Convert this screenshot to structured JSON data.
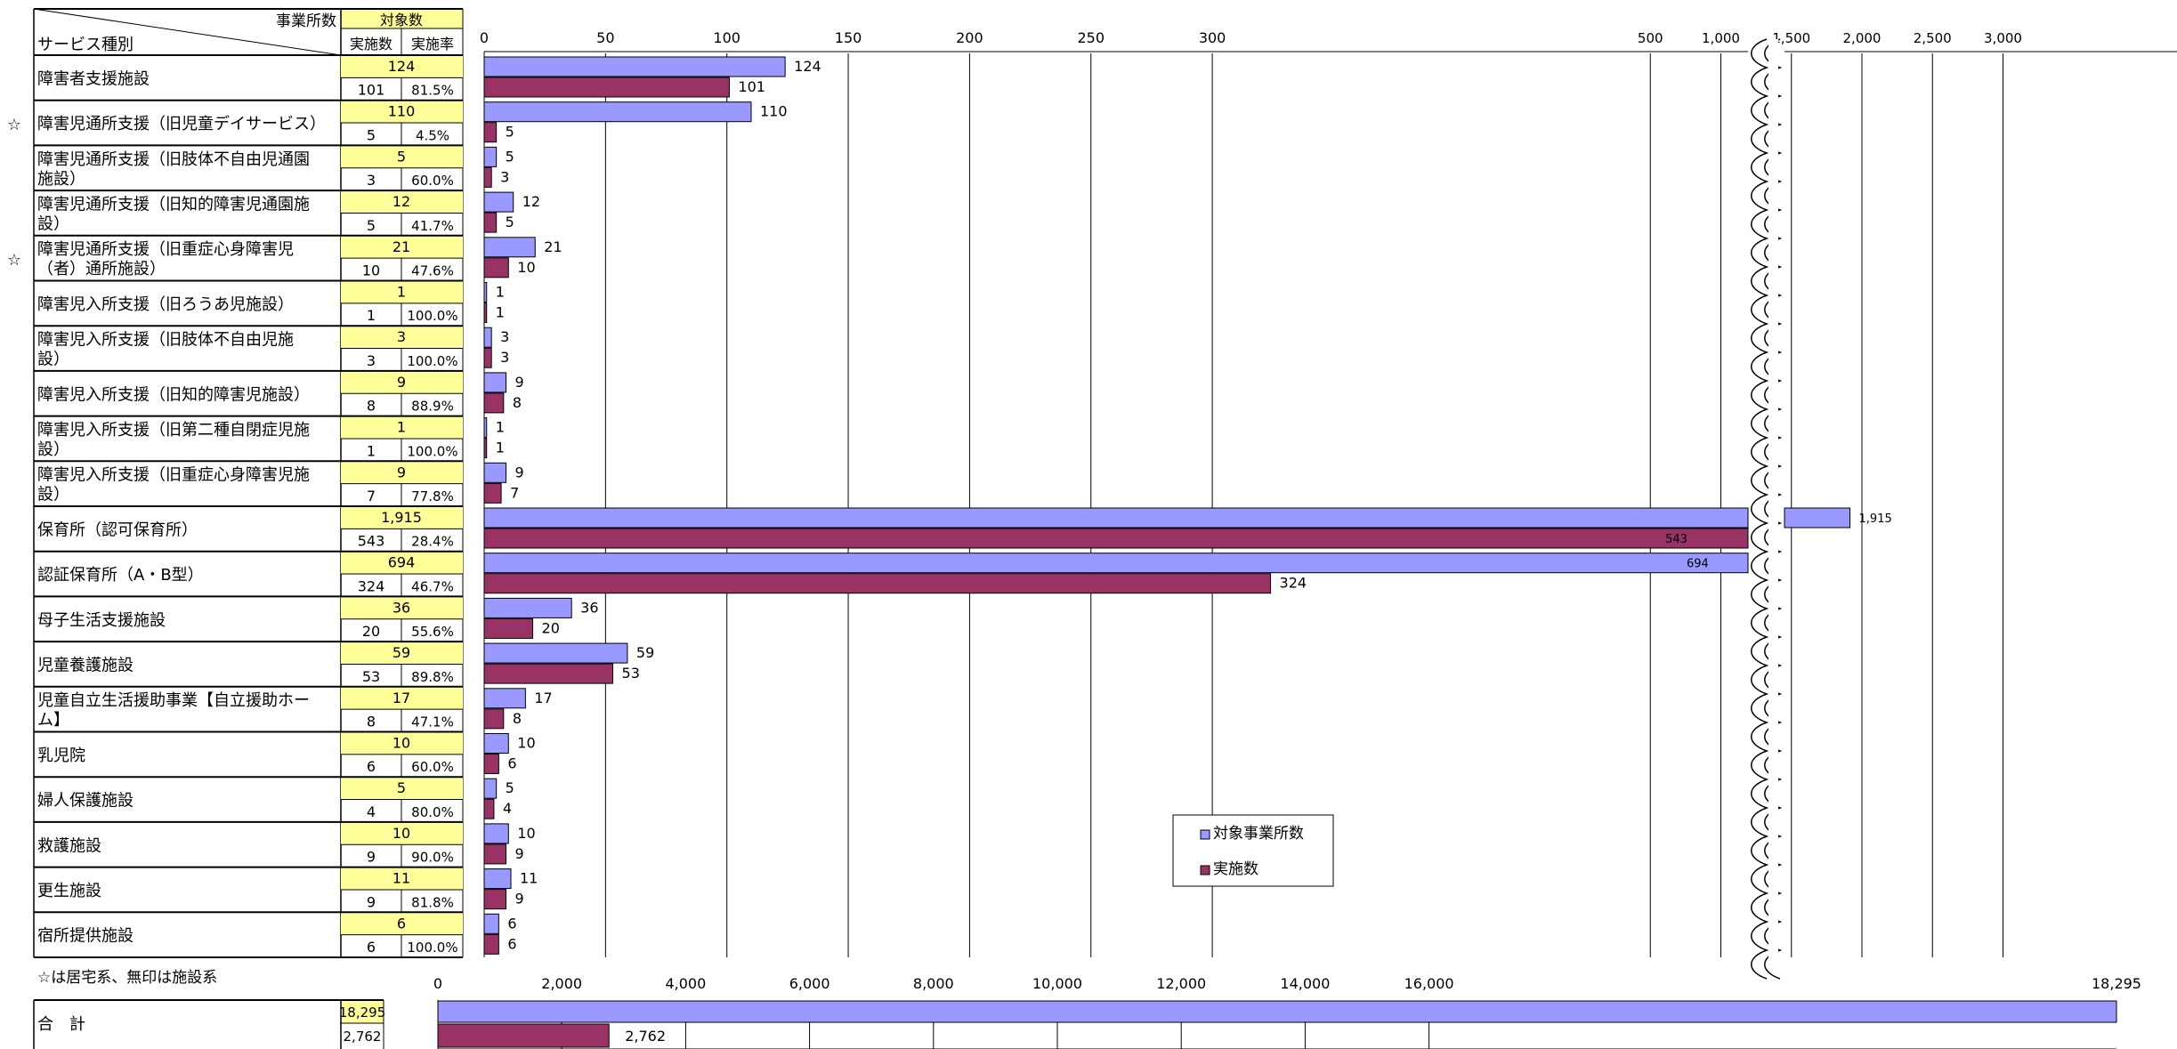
{
  "table": {
    "header_office": "事業所数",
    "header_target": "対象数",
    "header_service": "サービス種別",
    "header_done": "実施数",
    "header_rate": "実施率"
  },
  "rows": [
    {
      "star": "",
      "label": [
        "障害者支援施設"
      ],
      "target": 124,
      "target_text": "124",
      "done": 101,
      "done_text": "101",
      "rate": "81.5%"
    },
    {
      "star": "☆",
      "label": [
        "障害児通所支援（旧児童デイサービス）"
      ],
      "target": 110,
      "target_text": "110",
      "done": 5,
      "done_text": "5",
      "rate": "4.5%"
    },
    {
      "star": "",
      "label": [
        "障害児通所支援（旧肢体不自由児通園",
        "施設）"
      ],
      "target": 5,
      "target_text": "5",
      "done": 3,
      "done_text": "3",
      "rate": "60.0%"
    },
    {
      "star": "",
      "label": [
        "障害児通所支援（旧知的障害児通園施",
        "設）"
      ],
      "target": 12,
      "target_text": "12",
      "done": 5,
      "done_text": "5",
      "rate": "41.7%"
    },
    {
      "star": "☆",
      "label": [
        "障害児通所支援（旧重症心身障害児",
        "（者）通所施設）"
      ],
      "target": 21,
      "target_text": "21",
      "done": 10,
      "done_text": "10",
      "rate": "47.6%"
    },
    {
      "star": "",
      "label": [
        "障害児入所支援（旧ろうあ児施設）"
      ],
      "target": 1,
      "target_text": "1",
      "done": 1,
      "done_text": "1",
      "rate": "100.0%"
    },
    {
      "star": "",
      "label": [
        "障害児入所支援（旧肢体不自由児施",
        "設）"
      ],
      "target": 3,
      "target_text": "3",
      "done": 3,
      "done_text": "3",
      "rate": "100.0%"
    },
    {
      "star": "",
      "label": [
        "障害児入所支援（旧知的障害児施設）"
      ],
      "target": 9,
      "target_text": "9",
      "done": 8,
      "done_text": "8",
      "rate": "88.9%"
    },
    {
      "star": "",
      "label": [
        "障害児入所支援（旧第二種自閉症児施",
        "設）"
      ],
      "target": 1,
      "target_text": "1",
      "done": 1,
      "done_text": "1",
      "rate": "100.0%"
    },
    {
      "star": "",
      "label": [
        "障害児入所支援（旧重症心身障害児施",
        "設）"
      ],
      "target": 9,
      "target_text": "9",
      "done": 7,
      "done_text": "7",
      "rate": "77.8%"
    },
    {
      "star": "",
      "label": [
        "保育所（認可保育所）"
      ],
      "target": 1915,
      "target_text": "1,915",
      "done": 543,
      "done_text": "543",
      "rate": "28.4%"
    },
    {
      "star": "",
      "label": [
        "認証保育所（A・B型）"
      ],
      "target": 694,
      "target_text": "694",
      "done": 324,
      "done_text": "324",
      "rate": "46.7%"
    },
    {
      "star": "",
      "label": [
        "母子生活支援施設"
      ],
      "target": 36,
      "target_text": "36",
      "done": 20,
      "done_text": "20",
      "rate": "55.6%"
    },
    {
      "star": "",
      "label": [
        "児童養護施設"
      ],
      "target": 59,
      "target_text": "59",
      "done": 53,
      "done_text": "53",
      "rate": "89.8%"
    },
    {
      "star": "",
      "label": [
        "児童自立生活援助事業【自立援助ホー",
        "ム】"
      ],
      "target": 17,
      "target_text": "17",
      "done": 8,
      "done_text": "8",
      "rate": "47.1%"
    },
    {
      "star": "",
      "label": [
        "乳児院"
      ],
      "target": 10,
      "target_text": "10",
      "done": 6,
      "done_text": "6",
      "rate": "60.0%"
    },
    {
      "star": "",
      "label": [
        "婦人保護施設"
      ],
      "target": 5,
      "target_text": "5",
      "done": 4,
      "done_text": "4",
      "rate": "80.0%"
    },
    {
      "star": "",
      "label": [
        "救護施設"
      ],
      "target": 10,
      "target_text": "10",
      "done": 9,
      "done_text": "9",
      "rate": "90.0%"
    },
    {
      "star": "",
      "label": [
        "更生施設"
      ],
      "target": 11,
      "target_text": "11",
      "done": 9,
      "done_text": "9",
      "rate": "81.8%"
    },
    {
      "star": "",
      "label": [
        "宿所提供施設"
      ],
      "target": 6,
      "target_text": "6",
      "done": 6,
      "done_text": "6",
      "rate": "100.0%"
    }
  ],
  "note": "☆は居宅系、無印は施設系",
  "total": {
    "label": "合　計",
    "target": 18295,
    "target_text": "18,295",
    "done": 2762,
    "done_text": "2,762"
  },
  "chart_data": [
    {
      "type": "bar",
      "orientation": "horizontal",
      "axis_break": {
        "from": 330,
        "to": 500
      },
      "x_ticks_left": [
        "0",
        "50",
        "100",
        "150",
        "200",
        "250",
        "300"
      ],
      "x_ticks_right": [
        "500",
        "1,000",
        "1,500",
        "2,000",
        "2,500",
        "3,000"
      ],
      "legend": {
        "position": "center-bottom",
        "entries": [
          "対象事業所数",
          "実施数"
        ]
      },
      "series": [
        {
          "name": "対象事業所数",
          "color": "#9999ff"
        },
        {
          "name": "実施数",
          "color": "#993366"
        }
      ]
    },
    {
      "type": "bar",
      "orientation": "horizontal",
      "x_ticks": [
        "0",
        "2,000",
        "4,000",
        "6,000",
        "8,000",
        "10,000",
        "12,000",
        "14,000",
        "16,000",
        "18,295"
      ],
      "xlim": [
        0,
        17000
      ]
    }
  ]
}
